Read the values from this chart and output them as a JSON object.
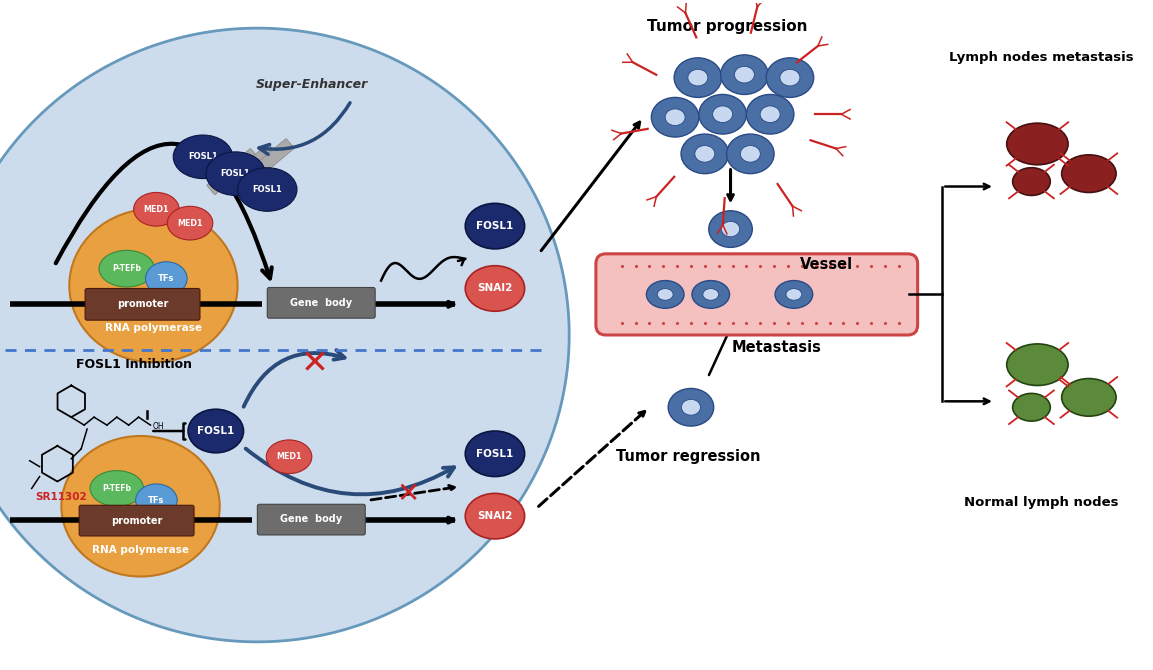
{
  "navy": "#1a2a6c",
  "red_circle": "#d9534f",
  "green_oval": "#5cb85c",
  "blue_oval": "#5b9bd5",
  "brown_rect": "#6b3a2a",
  "orange_circle": "#e8a040",
  "gray_rect": "#6d6d6d",
  "tumor_blue": "#4a6fa5",
  "tumor_light": "#c8d8f0",
  "fosl1_inhibition_text": "FOSL1 Inhibition",
  "sr11302_text": "SR11302",
  "super_enhancer_text": "Super-Enhancer",
  "promoter_text": "promoter",
  "rna_poly_text": "RNA polymerase",
  "gene_body_text": "Gene  body",
  "fosl1_text": "FOSL1",
  "snai2_text": "SNAI2",
  "med1_text": "MED1",
  "p_tefb_text": "P-TEFb",
  "tfs_text": "TFs",
  "tumor_prog_text": "Tumor progression",
  "vessel_text": "Vessel",
  "metastasis_text": "Metastasis",
  "tumor_reg_text": "Tumor regression",
  "lymph_meta_text": "Lymph nodes metastasis",
  "normal_lymph_text": "Normal lymph nodes"
}
